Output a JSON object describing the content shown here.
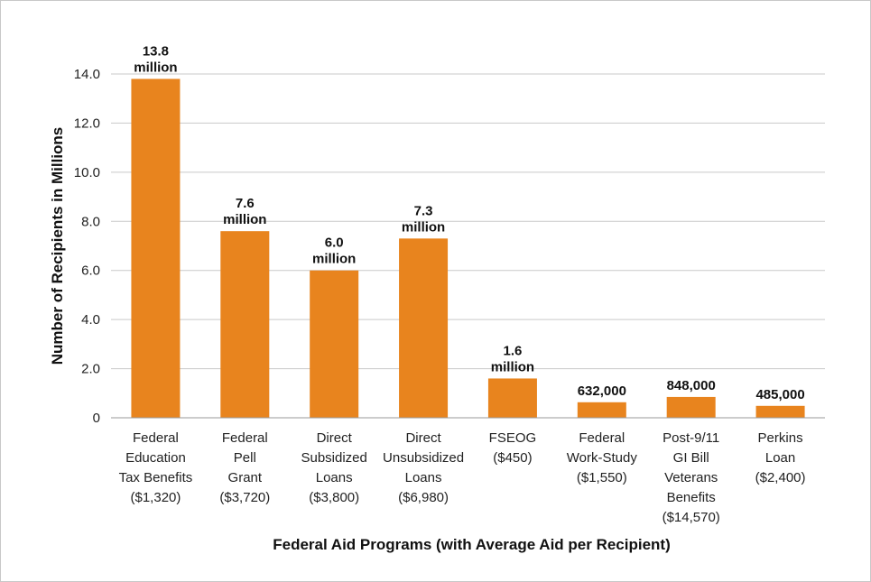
{
  "chart_data": {
    "type": "bar",
    "xlabel": "Federal Aid Programs (with Average Aid per Recipient)",
    "ylabel": "Number of Recipients in Millions",
    "ylim": [
      0,
      14
    ],
    "yticks": [
      "0",
      "2.0",
      "4.0",
      "6.0",
      "8.0",
      "10.0",
      "12.0",
      "14.0"
    ],
    "grid": true,
    "bar_color": "#E8841E",
    "categories": [
      [
        "Federal",
        "Education",
        "Tax Benefits",
        "($1,320)"
      ],
      [
        "Federal",
        "Pell",
        "Grant",
        "($3,720)"
      ],
      [
        "Direct",
        "Subsidized",
        "Loans",
        "($3,800)"
      ],
      [
        "Direct",
        "Unsubsidized",
        "Loans",
        "($6,980)"
      ],
      [
        "FSEOG",
        "($450)"
      ],
      [
        "Federal",
        "Work-Study",
        "($1,550)"
      ],
      [
        "Post-9/11",
        "GI Bill",
        "Veterans",
        "Benefits",
        "($14,570)"
      ],
      [
        "Perkins",
        "Loan",
        "($2,400)"
      ]
    ],
    "values": [
      13.8,
      7.6,
      6.0,
      7.3,
      1.6,
      0.632,
      0.848,
      0.485
    ],
    "data_labels": [
      [
        "13.8",
        "million"
      ],
      [
        "7.6",
        "million"
      ],
      [
        "6.0",
        "million"
      ],
      [
        "7.3",
        "million"
      ],
      [
        "1.6",
        "million"
      ],
      [
        "632,000"
      ],
      [
        "848,000"
      ],
      [
        "485,000"
      ]
    ]
  }
}
